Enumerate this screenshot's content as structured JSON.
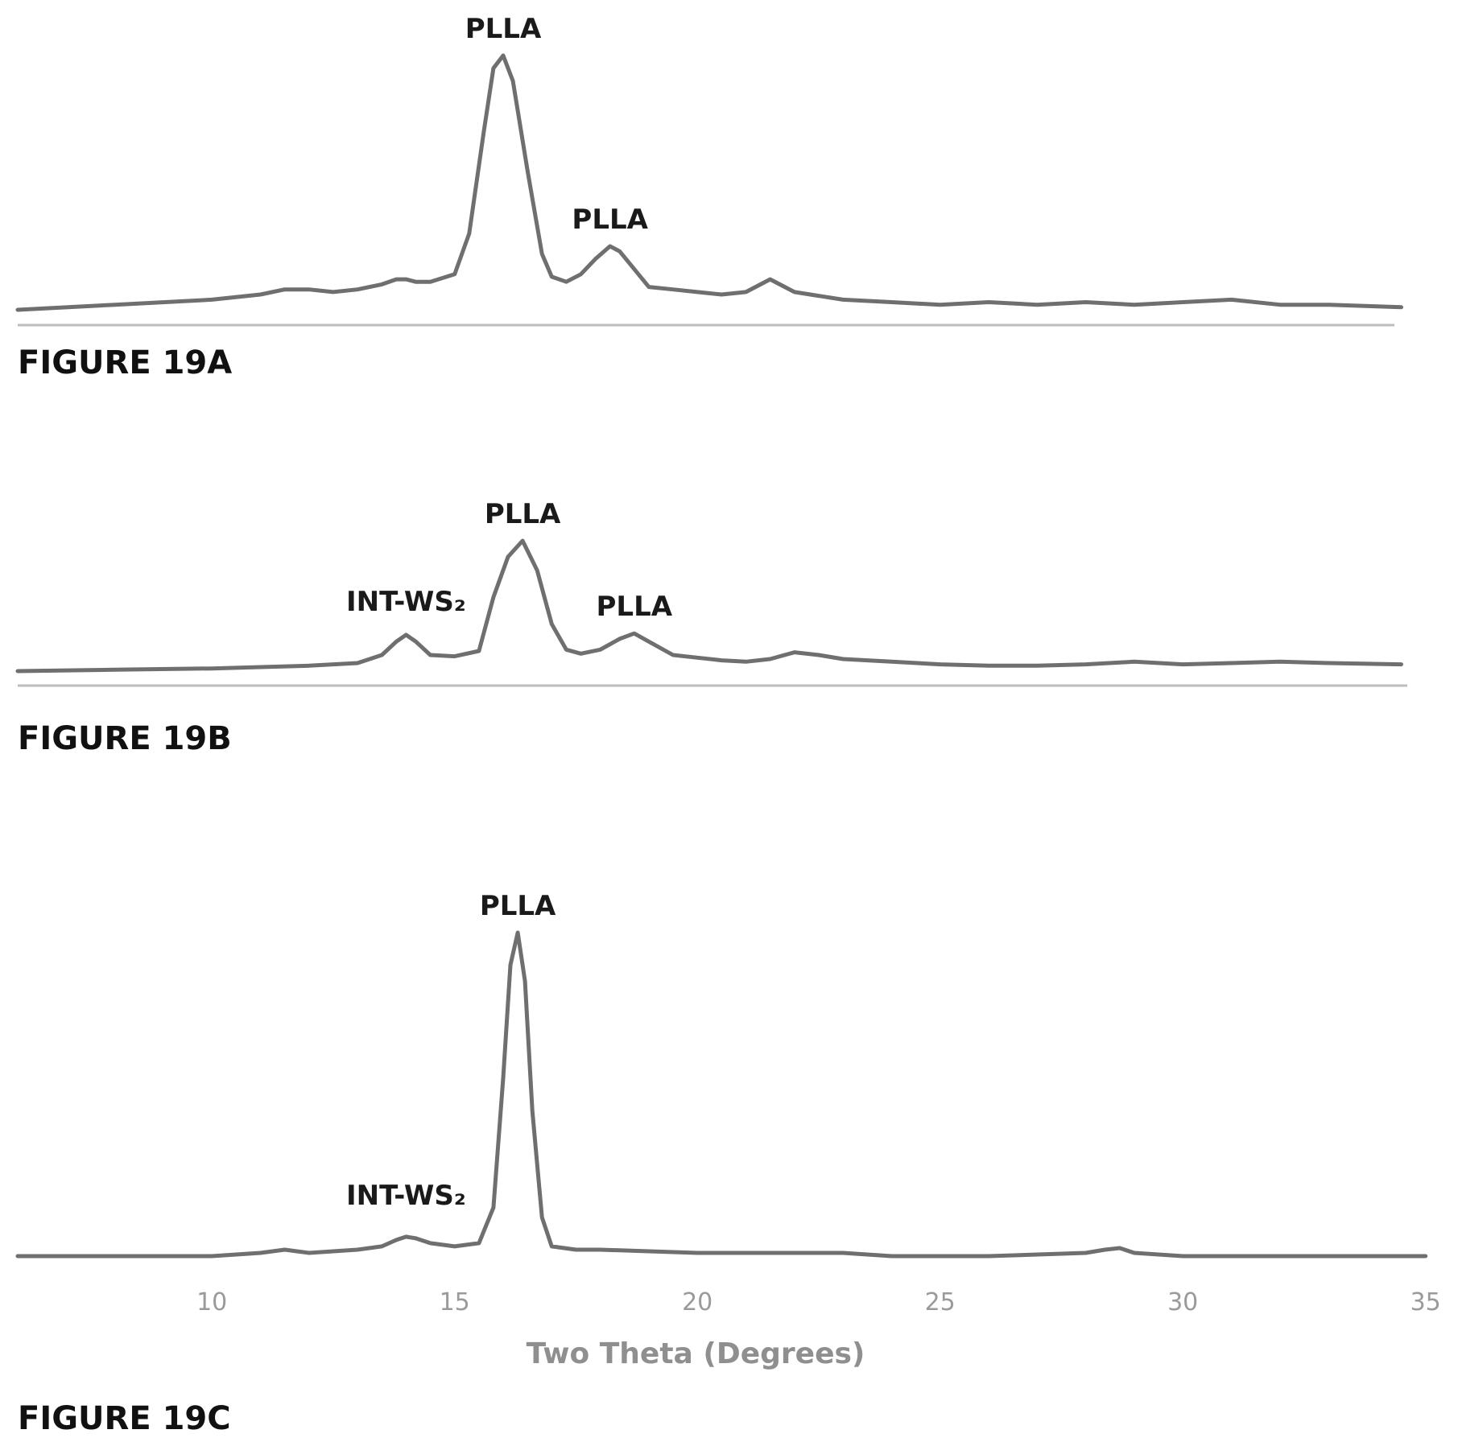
{
  "chart_data": [
    {
      "type": "line",
      "figure_label": "FIGURE 19A",
      "xlim": [
        6,
        34.5
      ],
      "ylim": [
        0,
        1
      ],
      "grid": false,
      "x": [
        6,
        8,
        10,
        11,
        11.5,
        12,
        12.5,
        13,
        13.5,
        13.8,
        14,
        14.2,
        14.5,
        15,
        15.3,
        15.6,
        15.8,
        16,
        16.2,
        16.5,
        16.8,
        17,
        17.3,
        17.6,
        17.9,
        18.2,
        18.4,
        18.7,
        19,
        19.5,
        20,
        20.5,
        21,
        21.5,
        22,
        23,
        24,
        25,
        26,
        27,
        28,
        29,
        30,
        31,
        32,
        33,
        34.5
      ],
      "values": [
        0.0,
        0.02,
        0.04,
        0.06,
        0.08,
        0.08,
        0.07,
        0.08,
        0.1,
        0.12,
        0.12,
        0.11,
        0.11,
        0.14,
        0.3,
        0.7,
        0.95,
        1.0,
        0.9,
        0.55,
        0.22,
        0.13,
        0.11,
        0.14,
        0.2,
        0.25,
        0.23,
        0.16,
        0.09,
        0.08,
        0.07,
        0.06,
        0.07,
        0.12,
        0.07,
        0.04,
        0.03,
        0.02,
        0.03,
        0.02,
        0.03,
        0.02,
        0.03,
        0.04,
        0.02,
        0.02,
        0.01
      ],
      "annotations": [
        {
          "text": "PLLA",
          "x": 16.0
        },
        {
          "text": "PLLA",
          "x": 18.2
        }
      ]
    },
    {
      "type": "line",
      "figure_label": "FIGURE 19B",
      "xlim": [
        6,
        34.5
      ],
      "ylim": [
        0,
        1
      ],
      "grid": false,
      "x": [
        6,
        8,
        10,
        11,
        12,
        13,
        13.5,
        13.8,
        14,
        14.2,
        14.5,
        15,
        15.5,
        15.8,
        16.1,
        16.4,
        16.7,
        17,
        17.3,
        17.6,
        18,
        18.4,
        18.7,
        19,
        19.5,
        20,
        20.5,
        21,
        21.5,
        22,
        22.5,
        23,
        24,
        25,
        26,
        27,
        28,
        29,
        30,
        31,
        32,
        33,
        34.5
      ],
      "values": [
        0.0,
        0.01,
        0.02,
        0.03,
        0.04,
        0.06,
        0.12,
        0.22,
        0.27,
        0.22,
        0.12,
        0.11,
        0.15,
        0.55,
        0.85,
        0.97,
        0.75,
        0.35,
        0.16,
        0.13,
        0.16,
        0.24,
        0.28,
        0.22,
        0.12,
        0.1,
        0.08,
        0.07,
        0.09,
        0.14,
        0.12,
        0.09,
        0.07,
        0.05,
        0.04,
        0.04,
        0.05,
        0.07,
        0.05,
        0.06,
        0.07,
        0.06,
        0.05
      ],
      "annotations": [
        {
          "text": "INT-WS₂",
          "x": 14.0
        },
        {
          "text": "PLLA",
          "x": 16.4
        },
        {
          "text": "PLLA",
          "x": 18.7
        }
      ]
    },
    {
      "type": "line",
      "figure_label": "FIGURE 19C",
      "xlim": [
        6,
        35
      ],
      "ylim": [
        0,
        1
      ],
      "grid": false,
      "xticks": [
        10,
        15,
        20,
        25,
        30,
        35
      ],
      "xlabel": "Two Theta (Degrees)",
      "x": [
        6,
        8,
        10,
        11,
        11.5,
        12,
        13,
        13.5,
        13.8,
        14,
        14.2,
        14.5,
        15,
        15.5,
        15.8,
        16,
        16.15,
        16.3,
        16.45,
        16.6,
        16.8,
        17,
        17.5,
        18,
        20,
        22,
        23,
        24,
        26,
        28,
        28.4,
        28.7,
        29,
        30,
        32,
        34,
        35
      ],
      "values": [
        0.0,
        0.0,
        0.0,
        0.01,
        0.02,
        0.01,
        0.02,
        0.03,
        0.05,
        0.06,
        0.055,
        0.04,
        0.03,
        0.04,
        0.15,
        0.55,
        0.9,
        1.0,
        0.85,
        0.45,
        0.12,
        0.03,
        0.02,
        0.02,
        0.01,
        0.01,
        0.01,
        0.0,
        0.0,
        0.01,
        0.02,
        0.025,
        0.01,
        0.0,
        0.0,
        0.0,
        0.0
      ],
      "annotations": [
        {
          "text": "INT-WS₂",
          "x": 14.0
        },
        {
          "text": "PLLA",
          "x": 16.3
        }
      ]
    }
  ]
}
